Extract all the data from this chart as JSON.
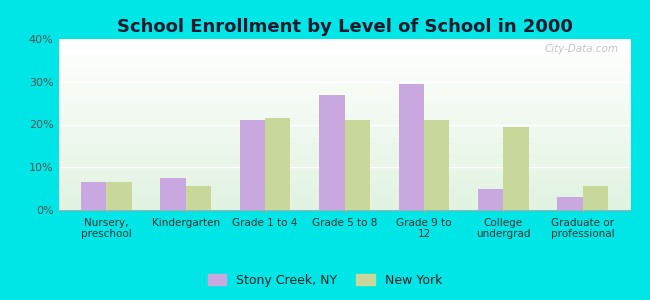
{
  "title": "School Enrollment by Level of School in 2000",
  "categories": [
    "Nursery,\npreschool",
    "Kindergarten",
    "Grade 1 to 4",
    "Grade 5 to 8",
    "Grade 9 to\n12",
    "College\nundergrad",
    "Graduate or\nprofessional"
  ],
  "stony_creek": [
    6.5,
    7.5,
    21.0,
    27.0,
    29.5,
    5.0,
    3.0
  ],
  "new_york": [
    6.5,
    5.5,
    21.5,
    21.0,
    21.0,
    19.5,
    5.5
  ],
  "bar_color_stony": "#c9a8e0",
  "bar_color_ny": "#c8d89a",
  "background_color": "#00e5e5",
  "ylim": [
    0,
    40
  ],
  "yticks": [
    0,
    10,
    20,
    30,
    40
  ],
  "ytick_labels": [
    "0%",
    "10%",
    "20%",
    "30%",
    "40%"
  ],
  "legend_stony": "Stony Creek, NY",
  "legend_ny": "New York",
  "watermark": "City-Data.com",
  "title_fontsize": 13,
  "tick_fontsize": 8,
  "xtick_fontsize": 7.5
}
